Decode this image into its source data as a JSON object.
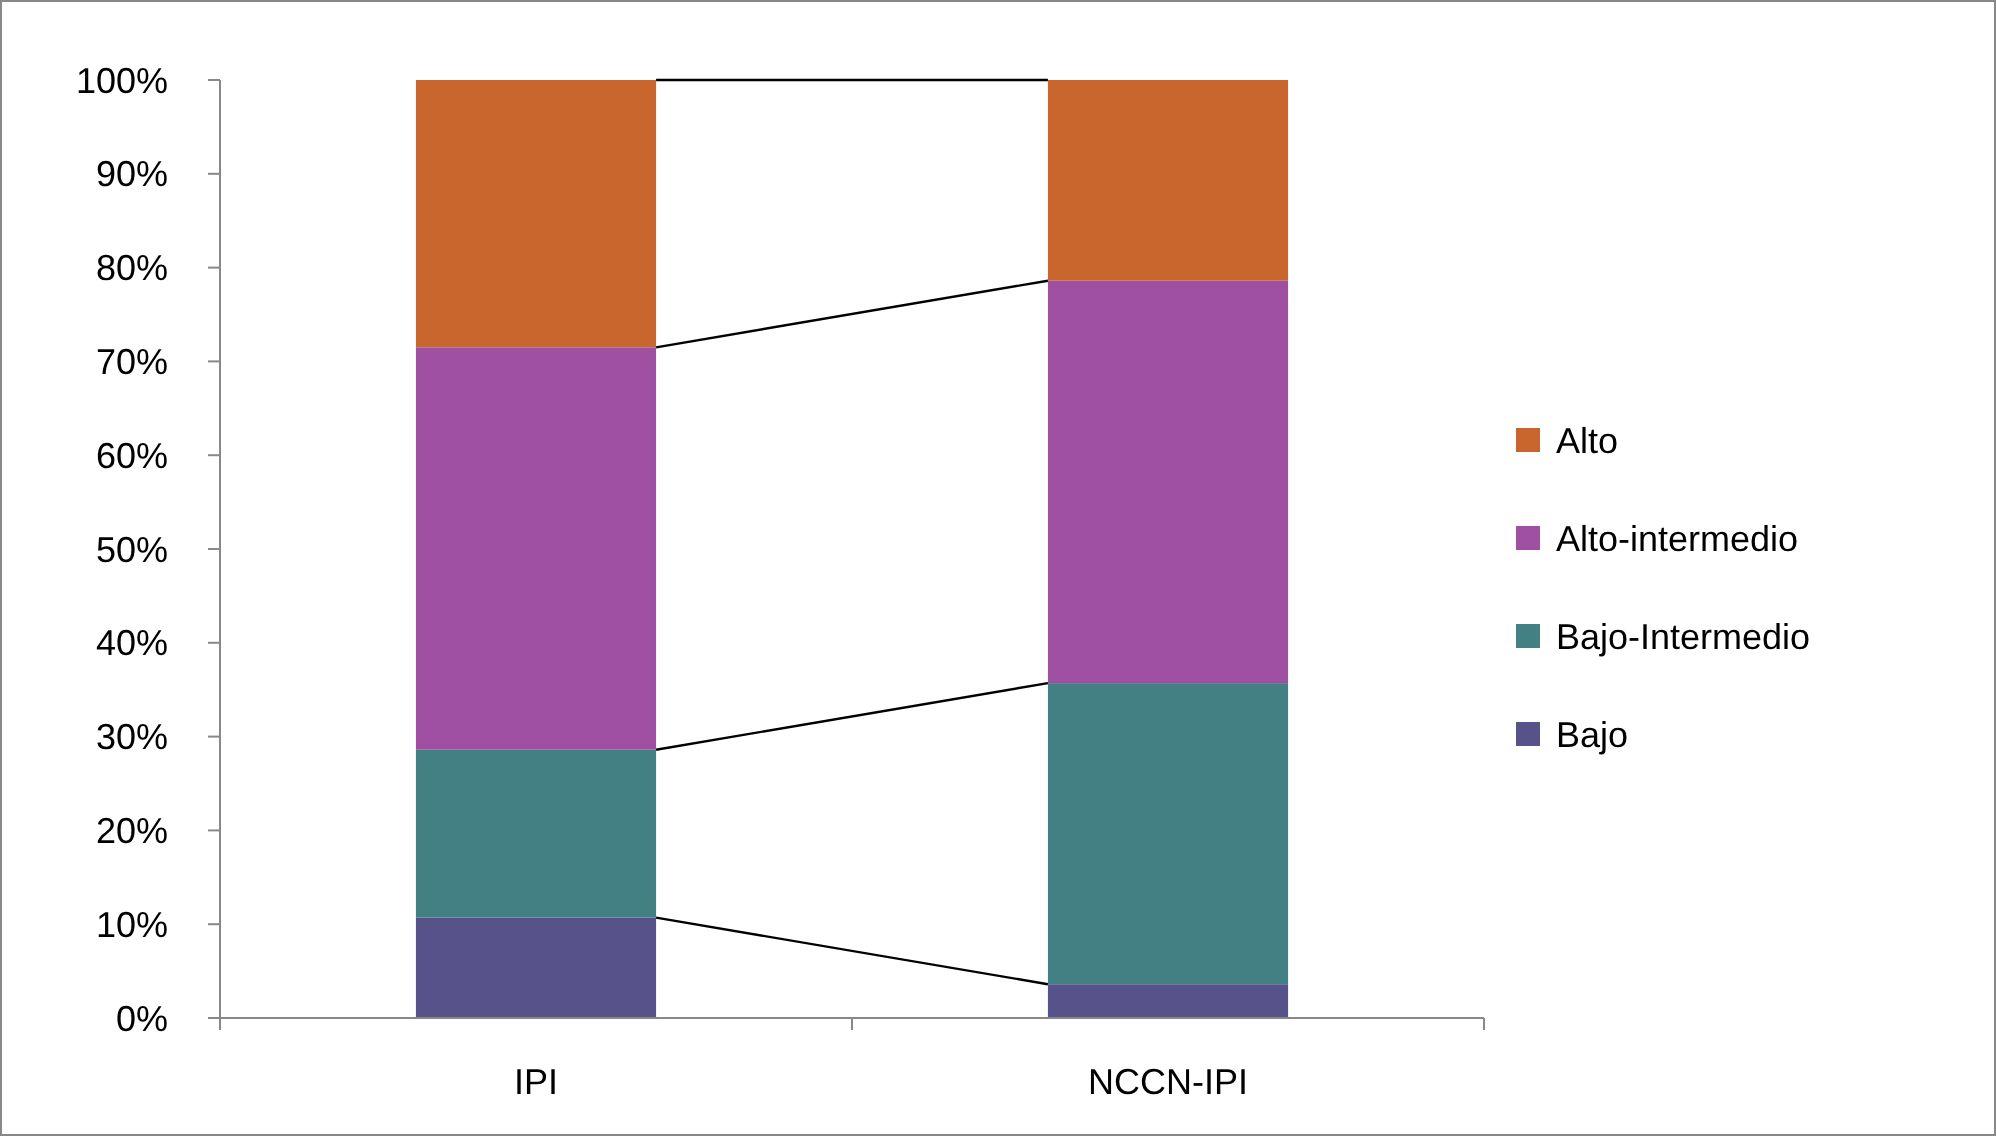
{
  "chart_data": {
    "type": "bar",
    "stacked": true,
    "categories": [
      "IPI",
      "NCCN-IPI"
    ],
    "series": [
      {
        "name": "Bajo",
        "color": "#575289",
        "values": [
          10.7,
          3.6
        ]
      },
      {
        "name": "Bajo-Intermedio",
        "color": "#428083",
        "values": [
          17.9,
          32.1
        ]
      },
      {
        "name": "Alto-intermedio",
        "color": "#a050a3",
        "values": [
          42.9,
          42.9
        ]
      },
      {
        "name": "Alto",
        "color": "#c8662e",
        "values": [
          28.5,
          21.4
        ]
      }
    ],
    "ylim": [
      0,
      100
    ],
    "yticks": [
      {
        "value": 0,
        "label": "0%"
      },
      {
        "value": 10,
        "label": "10%"
      },
      {
        "value": 20,
        "label": "20%"
      },
      {
        "value": 30,
        "label": "30%"
      },
      {
        "value": 40,
        "label": "40%"
      },
      {
        "value": 50,
        "label": "50%"
      },
      {
        "value": 60,
        "label": "60%"
      },
      {
        "value": 70,
        "label": "70%"
      },
      {
        "value": 80,
        "label": "80%"
      },
      {
        "value": 90,
        "label": "90%"
      },
      {
        "value": 100,
        "label": "100%"
      }
    ],
    "legend": "right",
    "grid": false
  }
}
